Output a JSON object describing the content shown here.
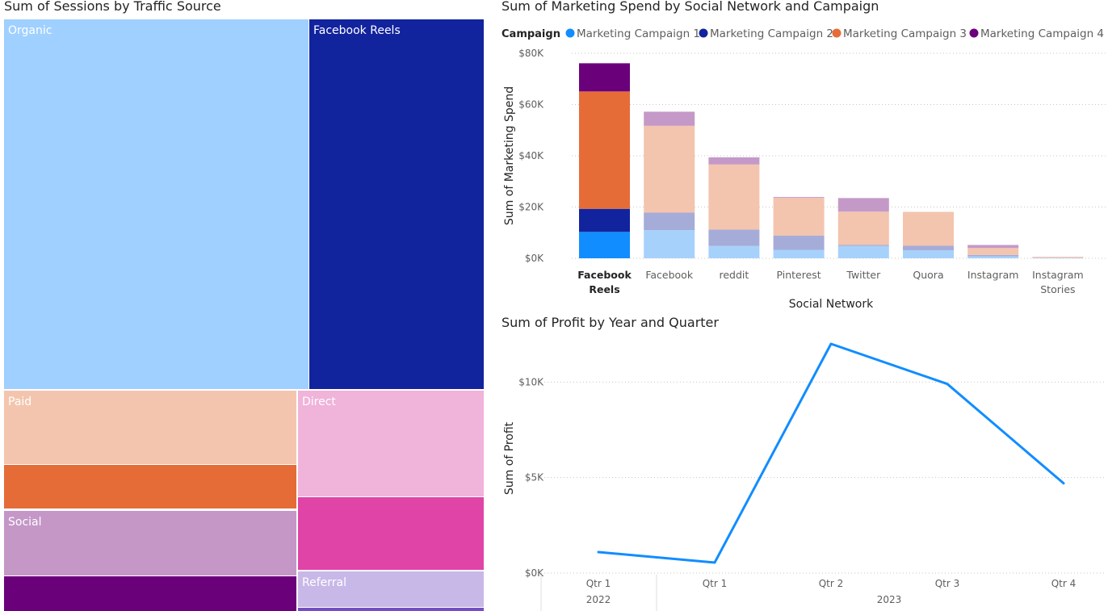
{
  "chart_data": [
    {
      "type": "treemap",
      "title": "Sum of Sessions by Traffic Source",
      "categories": [
        "Organic",
        "Facebook Reels",
        "Paid",
        "Direct",
        "Social",
        "Referral"
      ],
      "colors": {
        "Organic": "#9fd0ff",
        "Facebook Reels": "#12239e",
        "Paid": [
          "#f4c5ae",
          "#e56c37"
        ],
        "Direct": [
          "#f0b3da",
          "#e044a7"
        ],
        "Social": [
          "#c497c7",
          "#6b007b"
        ],
        "Referral": [
          "#c8b8e8",
          "#744ec2"
        ]
      }
    },
    {
      "type": "bar",
      "stacked": true,
      "title": "Sum of Marketing Spend by Social Network and Campaign",
      "legend_title": "Campaign",
      "xlabel": "Social Network",
      "ylabel": "Sum of Marketing Spend",
      "ylim": [
        0,
        80000
      ],
      "yticks": [
        0,
        20000,
        40000,
        60000,
        80000
      ],
      "ytick_labels": [
        "$0K",
        "$20K",
        "$40K",
        "$60K",
        "$80K"
      ],
      "categories": [
        "Facebook Reels",
        "Facebook",
        "reddit",
        "Pinterest",
        "Twitter",
        "Quora",
        "Instagram",
        "Instagram Stories"
      ],
      "category_lines": [
        [
          "Facebook",
          "Reels"
        ],
        [
          "Facebook"
        ],
        [
          "reddit"
        ],
        [
          "Pinterest"
        ],
        [
          "Twitter"
        ],
        [
          "Quora"
        ],
        [
          "Instagram"
        ],
        [
          "Instagram",
          "Stories"
        ]
      ],
      "highlighted_category": "Facebook Reels",
      "series": [
        {
          "name": "Marketing Campaign 1",
          "color": "#118dff",
          "faded_color": "#a6d1fb",
          "values": [
            10300,
            11000,
            4800,
            3300,
            4800,
            3100,
            800,
            200
          ]
        },
        {
          "name": "Marketing Campaign 2",
          "color": "#12239e",
          "faded_color": "#a6acd8",
          "values": [
            9000,
            6800,
            6400,
            5600,
            400,
            1800,
            500,
            0
          ]
        },
        {
          "name": "Marketing Campaign 3",
          "color": "#e66c37",
          "faded_color": "#f3c4ae",
          "values": [
            45800,
            33900,
            25400,
            14700,
            13000,
            13200,
            2700,
            400
          ]
        },
        {
          "name": "Marketing Campaign 4",
          "color": "#6b007b",
          "faded_color": "#c499c8",
          "values": [
            11000,
            5500,
            2800,
            300,
            5300,
            0,
            1200,
            0
          ]
        }
      ]
    },
    {
      "type": "line",
      "title": "Sum of Profit by Year and Quarter",
      "xlabel": "",
      "ylabel": "Sum of Profit",
      "ylim": [
        0,
        12000
      ],
      "yticks": [
        0,
        5000,
        10000
      ],
      "ytick_labels": [
        "$0K",
        "$5K",
        "$10K"
      ],
      "x": [
        "Qtr 1",
        "Qtr 1",
        "Qtr 2",
        "Qtr 3",
        "Qtr 4"
      ],
      "years": [
        {
          "label": "2022",
          "span": [
            0,
            0
          ]
        },
        {
          "label": "2023",
          "span": [
            1,
            4
          ]
        }
      ],
      "series": [
        {
          "name": "Sum of Profit",
          "color": "#118dff",
          "values": [
            1100,
            550,
            12000,
            9900,
            4700
          ]
        }
      ]
    }
  ]
}
